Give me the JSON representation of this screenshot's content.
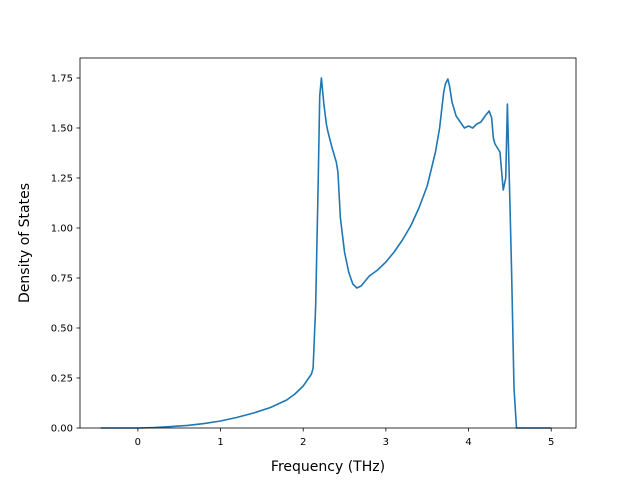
{
  "chart_data": {
    "type": "line",
    "title": "",
    "xlabel": "Frequency (THz)",
    "ylabel": "Density of States",
    "xlim": [
      -0.7,
      5.3
    ],
    "ylim": [
      0.0,
      1.85
    ],
    "xticks": [
      0,
      1,
      2,
      3,
      4,
      5
    ],
    "xtick_labels": [
      "0",
      "1",
      "2",
      "3",
      "4",
      "5"
    ],
    "yticks": [
      0.0,
      0.25,
      0.5,
      0.75,
      1.0,
      1.25,
      1.5,
      1.75
    ],
    "ytick_labels": [
      "0.00",
      "0.25",
      "0.50",
      "0.75",
      "1.00",
      "1.25",
      "1.50",
      "1.75"
    ],
    "grid": false,
    "legend": "none",
    "series": [
      {
        "color": "#1f77b4",
        "x": [
          -0.45,
          0.0,
          0.2,
          0.4,
          0.6,
          0.8,
          1.0,
          1.2,
          1.4,
          1.6,
          1.8,
          1.9,
          2.0,
          2.05,
          2.1,
          2.12,
          2.15,
          2.18,
          2.2,
          2.22,
          2.25,
          2.28,
          2.3,
          2.35,
          2.4,
          2.42,
          2.45,
          2.5,
          2.55,
          2.6,
          2.65,
          2.7,
          2.8,
          2.9,
          3.0,
          3.1,
          3.2,
          3.3,
          3.4,
          3.5,
          3.6,
          3.65,
          3.7,
          3.72,
          3.75,
          3.77,
          3.8,
          3.85,
          3.9,
          3.95,
          4.0,
          4.05,
          4.1,
          4.15,
          4.2,
          4.25,
          4.28,
          4.3,
          4.32,
          4.35,
          4.38,
          4.42,
          4.45,
          4.47,
          4.49,
          4.52,
          4.55,
          4.58,
          5.0
        ],
        "values": [
          0.0,
          0.0,
          0.002,
          0.007,
          0.013,
          0.022,
          0.035,
          0.053,
          0.075,
          0.102,
          0.14,
          0.17,
          0.21,
          0.24,
          0.27,
          0.3,
          0.6,
          1.2,
          1.66,
          1.75,
          1.62,
          1.52,
          1.48,
          1.4,
          1.33,
          1.28,
          1.05,
          0.88,
          0.78,
          0.72,
          0.7,
          0.71,
          0.76,
          0.79,
          0.83,
          0.88,
          0.94,
          1.01,
          1.1,
          1.21,
          1.38,
          1.5,
          1.68,
          1.72,
          1.745,
          1.71,
          1.63,
          1.56,
          1.53,
          1.5,
          1.51,
          1.5,
          1.52,
          1.53,
          1.56,
          1.585,
          1.55,
          1.45,
          1.42,
          1.4,
          1.38,
          1.19,
          1.25,
          1.62,
          1.3,
          0.8,
          0.2,
          0.0,
          0.0
        ]
      }
    ]
  }
}
